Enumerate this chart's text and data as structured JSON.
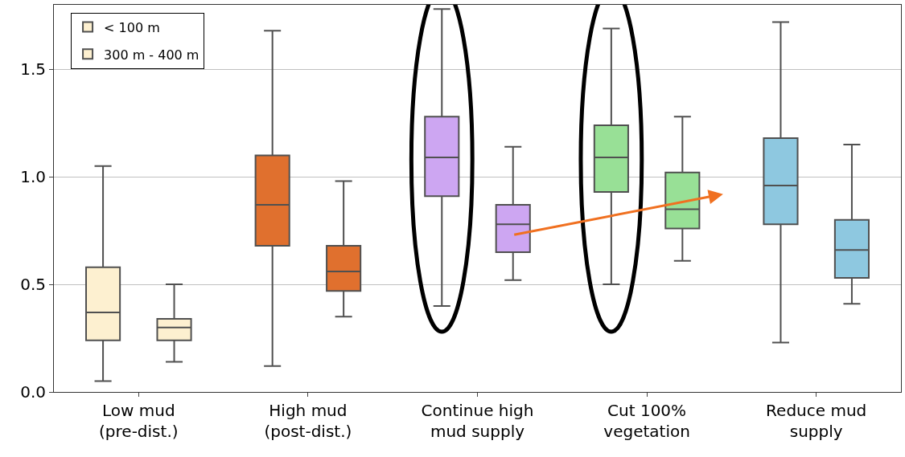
{
  "chart_data": {
    "type": "box",
    "categories": [
      "Low mud\n(pre-dist.)",
      "High mud\n(post-dist.)",
      "Continue high\nmud supply",
      "Cut 100%\nvegetation",
      "Reduce mud\nsupply"
    ],
    "series": [
      {
        "name": "< 100 m",
        "colors": [
          "#fdf0d0",
          "#e0702e",
          "#cda6f2",
          "#98e096",
          "#8ec8e0"
        ],
        "boxes": [
          {
            "low": 0.05,
            "q1": 0.24,
            "median": 0.37,
            "q3": 0.58,
            "high": 1.05
          },
          {
            "low": 0.12,
            "q1": 0.68,
            "median": 0.87,
            "q3": 1.1,
            "high": 1.68
          },
          {
            "low": 0.4,
            "q1": 0.91,
            "median": 1.09,
            "q3": 1.28,
            "high": 1.78
          },
          {
            "low": 0.5,
            "q1": 0.93,
            "median": 1.09,
            "q3": 1.24,
            "high": 1.69
          },
          {
            "low": 0.23,
            "q1": 0.78,
            "median": 0.96,
            "q3": 1.18,
            "high": 1.72
          }
        ]
      },
      {
        "name": "300 m - 400 m",
        "colors": [
          "#fdf0d0",
          "#e0702e",
          "#cda6f2",
          "#98e096",
          "#8ec8e0"
        ],
        "boxes": [
          {
            "low": 0.14,
            "q1": 0.24,
            "median": 0.3,
            "q3": 0.34,
            "high": 0.5
          },
          {
            "low": 0.35,
            "q1": 0.47,
            "median": 0.56,
            "q3": 0.68,
            "high": 0.98
          },
          {
            "low": 0.52,
            "q1": 0.65,
            "median": 0.78,
            "q3": 0.87,
            "high": 1.14
          },
          {
            "low": 0.61,
            "q1": 0.76,
            "median": 0.85,
            "q3": 1.02,
            "high": 1.28
          },
          {
            "low": 0.41,
            "q1": 0.53,
            "median": 0.66,
            "q3": 0.8,
            "high": 1.15
          }
        ]
      }
    ],
    "ylim": [
      0,
      1.8
    ],
    "yticks": [
      {
        "value": 0,
        "label": "0.0"
      },
      {
        "value": 0.5,
        "label": "0.5"
      },
      {
        "value": 1,
        "label": "1.0"
      },
      {
        "value": 1.5,
        "label": "1.5"
      }
    ],
    "grid": "y",
    "legend": "top left"
  }
}
